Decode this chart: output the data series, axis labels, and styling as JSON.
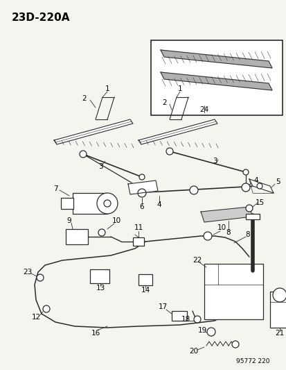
{
  "title": "23D-220A",
  "background_color": "#f5f5f0",
  "diagram_number": "95772 220"
}
